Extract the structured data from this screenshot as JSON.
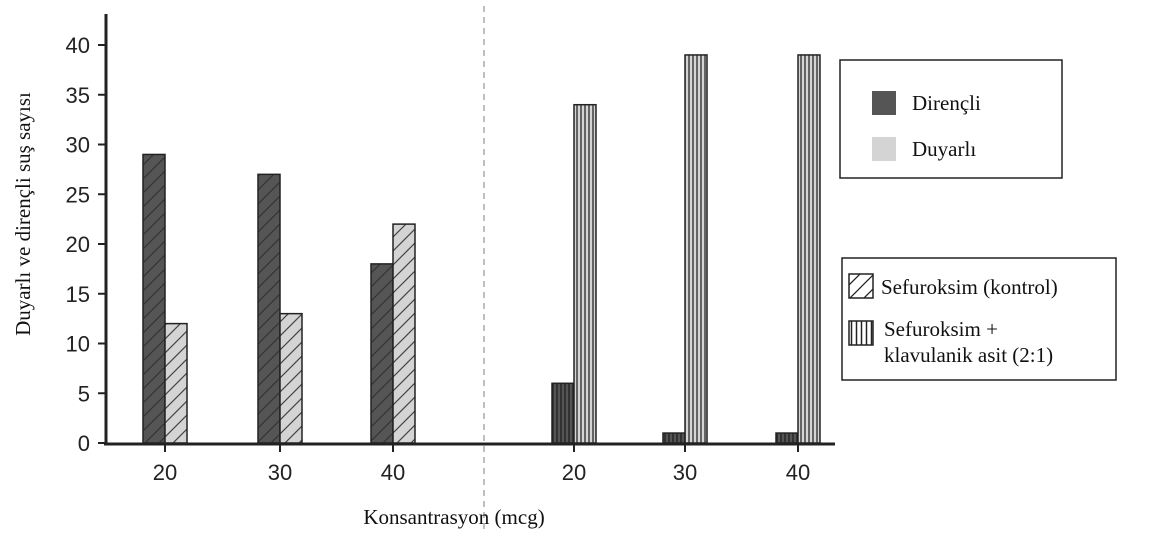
{
  "chart_data": {
    "type": "bar",
    "title": "",
    "xlabel": "Konsantrasyon (mcg)",
    "ylabel": "Duyarlı ve dirençli suş sayısı",
    "ylim": [
      0,
      40
    ],
    "yticks": [
      0,
      5,
      10,
      15,
      20,
      25,
      30,
      35,
      40
    ],
    "grid": false,
    "groups": [
      {
        "name": "Sefuroksim (kontrol)",
        "pattern": "diagonal",
        "categories": [
          "20",
          "30",
          "40"
        ],
        "series": [
          {
            "name": "Dirençli",
            "values": [
              29,
              27,
              18
            ]
          },
          {
            "name": "Duyarlı",
            "values": [
              12,
              13,
              22
            ]
          }
        ]
      },
      {
        "name": "Sefuroksim + klavulanik asit (2:1)",
        "pattern": "vertical",
        "categories": [
          "20",
          "30",
          "40"
        ],
        "series": [
          {
            "name": "Dirençli",
            "values": [
              6,
              1,
              1
            ]
          },
          {
            "name": "Duyarlı",
            "values": [
              34,
              39,
              39
            ]
          }
        ]
      }
    ],
    "legend_color": {
      "position": "right",
      "items": [
        {
          "label": "Dirençli",
          "color": "#555555"
        },
        {
          "label": "Duyarlı",
          "color": "#d4d4d4"
        }
      ]
    },
    "legend_pattern": {
      "position": "right",
      "items": [
        {
          "label_lines": [
            "Sefuroksim (kontrol)"
          ],
          "pattern": "diagonal"
        },
        {
          "label_lines": [
            "Sefuroksim +",
            "klavulanik asit (2:1)"
          ],
          "pattern": "vertical"
        }
      ]
    },
    "colors": {
      "resistant": "#555555",
      "sensitive": "#d4d4d4",
      "axis": "#222222",
      "separator": "#aaaaaa"
    }
  }
}
